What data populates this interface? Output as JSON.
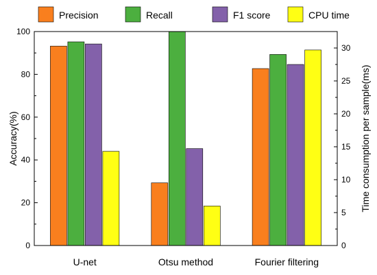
{
  "chart_data": {
    "type": "bar",
    "categories": [
      "U-net",
      "Otsu method",
      "Fourier filtering"
    ],
    "series": [
      {
        "name": "Precision",
        "axis": "left",
        "color": "#f97f1e",
        "values": [
          93.2,
          29.3,
          82.7
        ]
      },
      {
        "name": "Recall",
        "axis": "left",
        "color": "#4caf3f",
        "values": [
          95.2,
          100,
          89.3
        ]
      },
      {
        "name": "F1 score",
        "axis": "left",
        "color": "#8361aa",
        "values": [
          94.2,
          45.3,
          84.6
        ]
      },
      {
        "name": "CPU time",
        "axis": "right",
        "color": "#ffff14",
        "values": [
          14.3,
          6.0,
          29.7
        ]
      }
    ],
    "ylabel": "Accuracy(%)",
    "y2label": "Time consumption per sample(ms)",
    "ylim": [
      0,
      100
    ],
    "y2lim": [
      0,
      32.5
    ],
    "yticks": [
      0,
      20,
      40,
      60,
      80,
      100
    ],
    "y2ticks": [
      0,
      5,
      10,
      15,
      20,
      25,
      30
    ],
    "legend_position": "top",
    "grid": false
  }
}
